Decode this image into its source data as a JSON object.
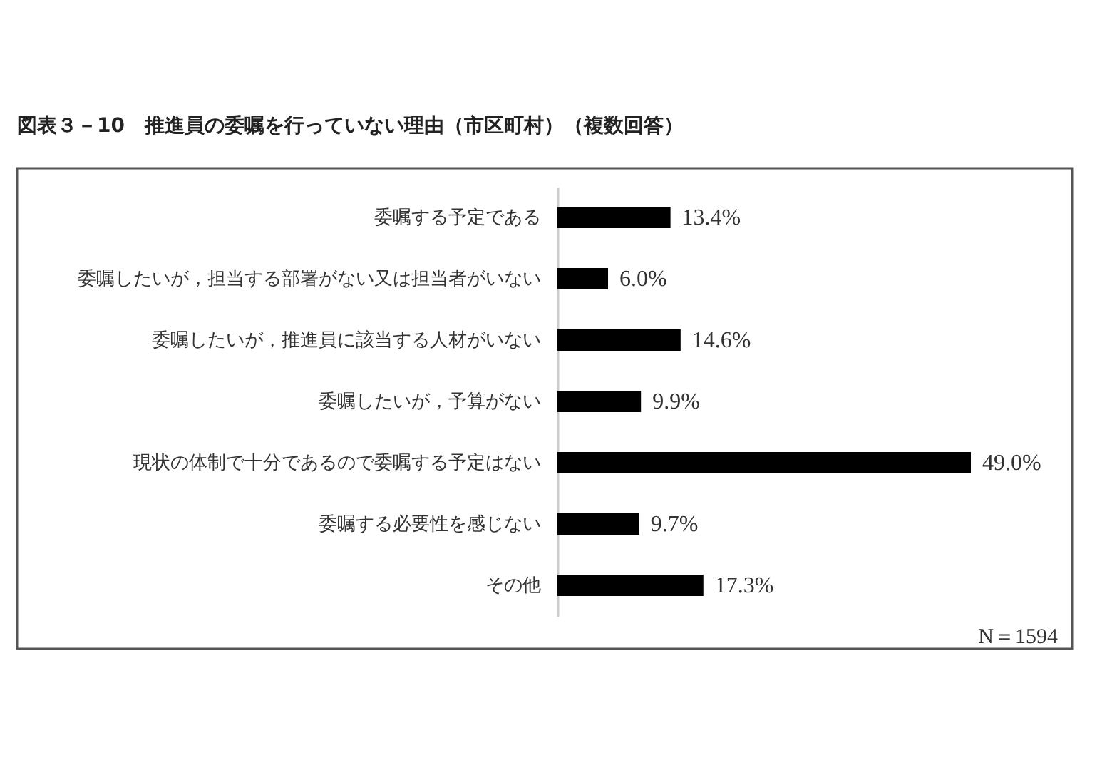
{
  "chart_data": {
    "type": "bar",
    "orientation": "horizontal",
    "title": "図表３－10　推進員の委嘱を行っていない理由（市区町村）（複数回答）",
    "categories": [
      "委嘱する予定である",
      "委嘱したいが，担当する部署がない又は担当者がいない",
      "委嘱したいが，推進員に該当する人材がいない",
      "委嘱したいが，予算がない",
      "現状の体制で十分であるので委嘱する予定はない",
      "委嘱する必要性を感じない",
      "その他"
    ],
    "values": [
      13.4,
      6.0,
      14.6,
      9.9,
      49.0,
      9.7,
      17.3
    ],
    "value_labels": [
      "13.4%",
      "6.0%",
      "14.6%",
      "9.9%",
      "49.0%",
      "9.7%",
      "17.3%"
    ],
    "color": "#000000",
    "tick_labels": "y",
    "grid": false,
    "annotations": [
      "N＝1594"
    ]
  }
}
